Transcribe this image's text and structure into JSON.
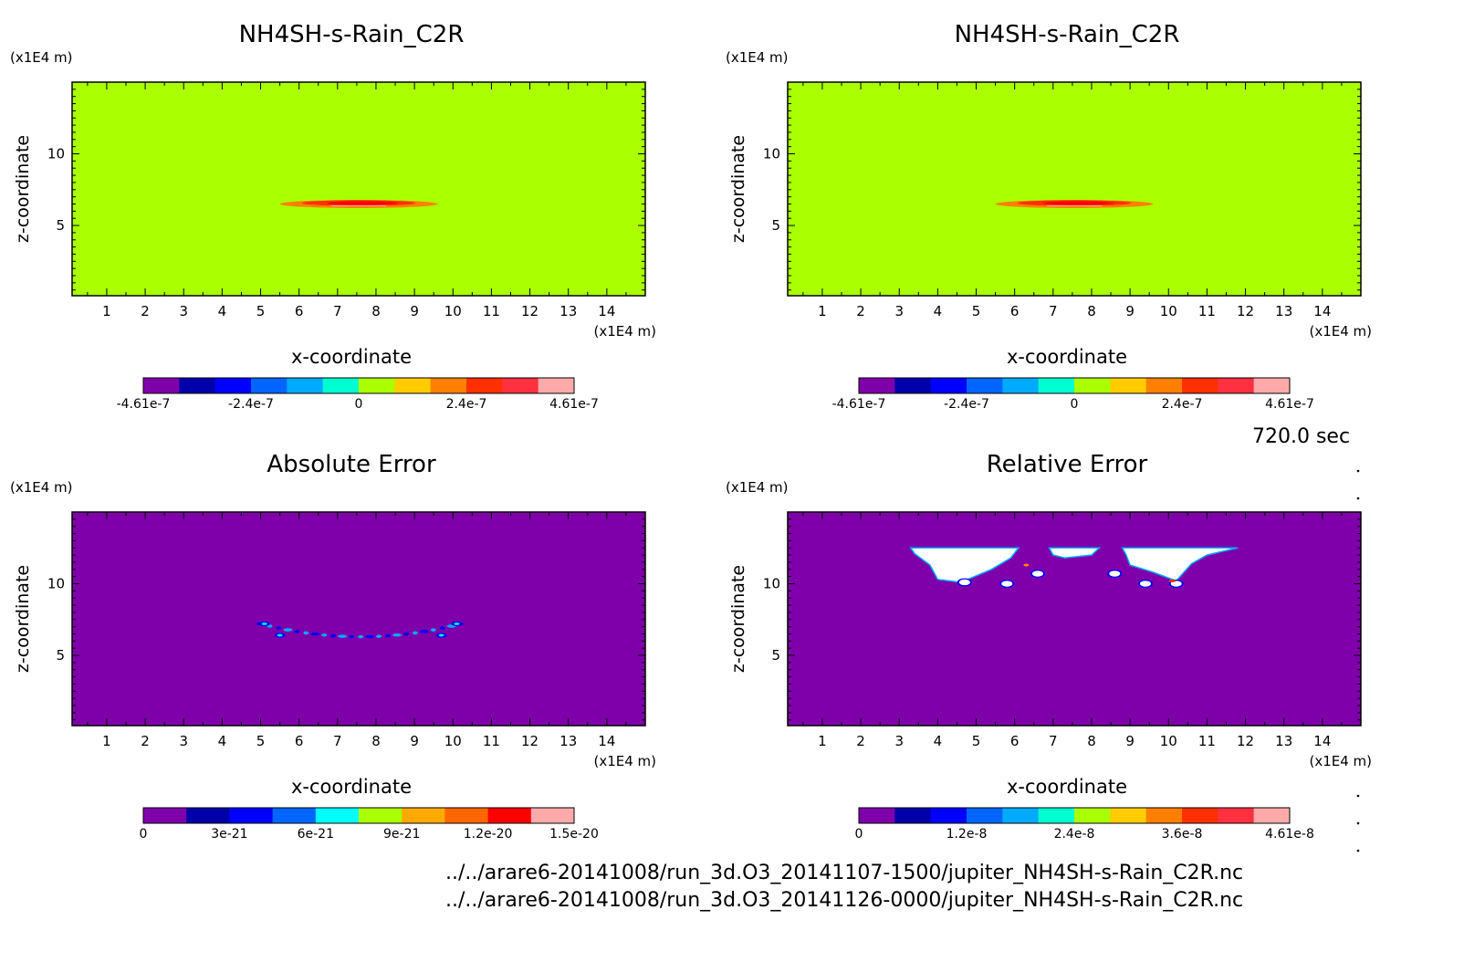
{
  "time_label": "720.0 sec",
  "files": [
    "../../arare6-20141008/run_3d.O3_20141107-1500/jupiter_NH4SH-s-Rain_C2R.nc",
    "../../arare6-20141008/run_3d.O3_20141126-0000/jupiter_NH4SH-s-Rain_C2R.nc"
  ],
  "chart_data": [
    {
      "type": "heatmap",
      "title": "NH4SH-s-Rain_C2R",
      "xlabel": "x-coordinate",
      "ylabel": "z-coordinate",
      "x_unit": "(x1E4 m)",
      "y_unit": "(x1E4 m)",
      "xlim": [
        0.1,
        15
      ],
      "ylim": [
        0.1,
        15
      ],
      "x_ticks": [
        1,
        2,
        3,
        4,
        5,
        6,
        7,
        8,
        9,
        10,
        11,
        12,
        13,
        14
      ],
      "y_ticks": [
        5,
        10
      ],
      "background_color": "#aaff00",
      "feature": {
        "shape": "thin lens",
        "x_range": [
          5.5,
          9.6
        ],
        "z_center": 6.5,
        "colors": [
          "#ff8000",
          "#ff3000",
          "#ff0000"
        ]
      },
      "colorbar": {
        "colors": [
          "#7f00aa",
          "#0000aa",
          "#0000ff",
          "#0066ff",
          "#00aaff",
          "#00ffd0",
          "#aaff00",
          "#ffcc00",
          "#ff8000",
          "#ff3000",
          "#ff3040",
          "#ffaaaa"
        ],
        "tick_labels": [
          "-4.61e-7",
          "-2.4e-7",
          "0",
          "2.4e-7",
          "4.61e-7"
        ]
      }
    },
    {
      "type": "heatmap",
      "title": "NH4SH-s-Rain_C2R",
      "xlabel": "x-coordinate",
      "ylabel": "z-coordinate",
      "x_unit": "(x1E4 m)",
      "y_unit": "(x1E4 m)",
      "xlim": [
        0.1,
        15
      ],
      "ylim": [
        0.1,
        15
      ],
      "x_ticks": [
        1,
        2,
        3,
        4,
        5,
        6,
        7,
        8,
        9,
        10,
        11,
        12,
        13,
        14
      ],
      "y_ticks": [
        5,
        10
      ],
      "background_color": "#aaff00",
      "feature": {
        "shape": "thin lens",
        "x_range": [
          5.5,
          9.6
        ],
        "z_center": 6.5,
        "colors": [
          "#ff8000",
          "#ff3000",
          "#ff0000"
        ]
      },
      "colorbar": {
        "colors": [
          "#7f00aa",
          "#0000aa",
          "#0000ff",
          "#0066ff",
          "#00aaff",
          "#00ffd0",
          "#aaff00",
          "#ffcc00",
          "#ff8000",
          "#ff3000",
          "#ff3040",
          "#ffaaaa"
        ],
        "tick_labels": [
          "-4.61e-7",
          "-2.4e-7",
          "0",
          "2.4e-7",
          "4.61e-7"
        ]
      }
    },
    {
      "type": "heatmap",
      "title": "Absolute Error",
      "xlabel": "x-coordinate",
      "ylabel": "z-coordinate",
      "x_unit": "(x1E4 m)",
      "y_unit": "(x1E4 m)",
      "xlim": [
        0.1,
        15
      ],
      "ylim": [
        0.1,
        15
      ],
      "x_ticks": [
        1,
        2,
        3,
        4,
        5,
        6,
        7,
        8,
        9,
        10,
        11,
        12,
        13,
        14
      ],
      "y_ticks": [
        5,
        10
      ],
      "background_color": "#7f00aa",
      "feature": {
        "shape": "scattered spots",
        "x_range": [
          5.0,
          10.2
        ],
        "z_range": [
          6.3,
          7.2
        ],
        "colors": [
          "#0000ff",
          "#00aaff",
          "#00ffd0"
        ]
      },
      "colorbar": {
        "colors": [
          "#7f00aa",
          "#0000aa",
          "#0000ff",
          "#0066ff",
          "#00ffff",
          "#aaff00",
          "#ffaa00",
          "#ff6600",
          "#ff0000",
          "#ffaaaa"
        ],
        "tick_labels": [
          "0",
          "3e-21",
          "6e-21",
          "9e-21",
          "1.2e-20",
          "1.5e-20"
        ]
      }
    },
    {
      "type": "heatmap",
      "title": "Relative Error",
      "xlabel": "x-coordinate",
      "ylabel": "z-coordinate",
      "x_unit": "(x1E4 m)",
      "y_unit": "(x1E4 m)",
      "xlim": [
        0.1,
        15
      ],
      "ylim": [
        0.1,
        15
      ],
      "x_ticks": [
        1,
        2,
        3,
        4,
        5,
        6,
        7,
        8,
        9,
        10,
        11,
        12,
        13,
        14
      ],
      "y_ticks": [
        5,
        10
      ],
      "background_color": "#7f00aa",
      "feature": {
        "shape": "white blobs",
        "x_range": [
          3.3,
          11.8
        ],
        "z_range": [
          9.8,
          12.5
        ],
        "colors": [
          "#ffffff",
          "#0000ff",
          "#00aaff",
          "#ff3000"
        ]
      },
      "colorbar": {
        "colors": [
          "#7f00aa",
          "#0000aa",
          "#0000ff",
          "#0066ff",
          "#00aaff",
          "#00ffd0",
          "#aaff00",
          "#ffcc00",
          "#ff8000",
          "#ff3000",
          "#ff3040",
          "#ffaaaa"
        ],
        "tick_labels": [
          "0",
          "1.2e-8",
          "2.4e-8",
          "3.6e-8",
          "4.61e-8"
        ]
      }
    }
  ]
}
